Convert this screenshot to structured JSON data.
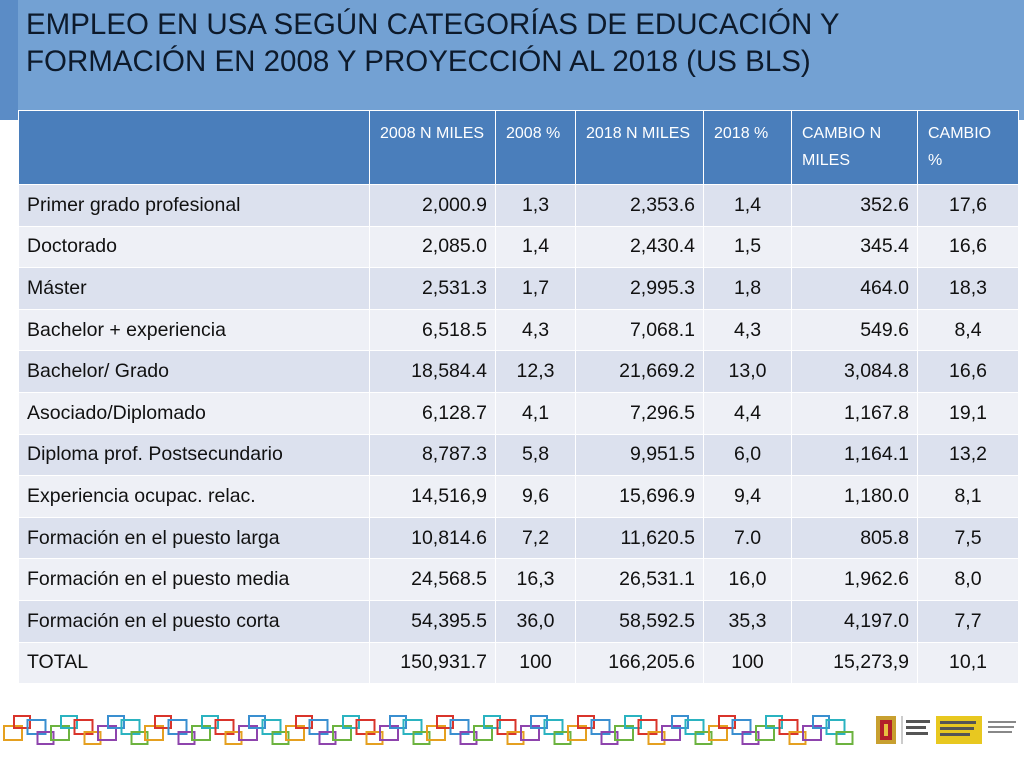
{
  "title": "EMPLEO EN USA SEGÚN CATEGORÍAS DE EDUCACIÓN Y FORMACIÓN EN 2008 Y PROYECCIÓN AL 2018 (US BLS)",
  "table": {
    "headers": [
      "",
      "2008 N MILES",
      "2008 %",
      "2018 N MILES",
      "2018 %",
      "CAMBIO N MILES",
      "CAMBIO %"
    ],
    "rows": [
      [
        "Primer grado profesional",
        "2,000.9",
        "1,3",
        "2,353.6",
        "1,4",
        "352.6",
        "17,6"
      ],
      [
        "Doctorado",
        "2,085.0",
        "1,4",
        "2,430.4",
        "1,5",
        "345.4",
        "16,6"
      ],
      [
        "Máster",
        "2,531.3",
        "1,7",
        "2,995.3",
        "1,8",
        "464.0",
        "18,3"
      ],
      [
        "Bachelor + experiencia",
        "6,518.5",
        "4,3",
        "7,068.1",
        "4,3",
        "549.6",
        "8,4"
      ],
      [
        "Bachelor/ Grado",
        "18,584.4",
        "12,3",
        "21,669.2",
        "13,0",
        "3,084.8",
        "16,6"
      ],
      [
        "Asociado/Diplomado",
        "6,128.7",
        "4,1",
        "7,296.5",
        "4,4",
        "1,167.8",
        "19,1"
      ],
      [
        "Diploma prof. Postsecundario",
        "8,787.3",
        "5,8",
        "9,951.5",
        "6,0",
        "1,164.1",
        "13,2"
      ],
      [
        "Experiencia ocupac. relac.",
        "14,516,9",
        "9,6",
        "15,696.9",
        "9,4",
        "1,180.0",
        "8,1"
      ],
      [
        "Formación en el puesto larga",
        "10,814.6",
        "7,2",
        "11,620.5",
        "7.0",
        "805.8",
        "7,5"
      ],
      [
        "Formación en el puesto  media",
        "24,568.5",
        "16,3",
        "26,531.1",
        "16,0",
        "1,962.6",
        "8,0"
      ],
      [
        "Formación en el puesto corta",
        "54,395.5",
        "36,0",
        "58,592.5",
        "35,3",
        "4,197.0",
        "7,7"
      ],
      [
        "TOTAL",
        "150,931.7",
        "100",
        "166,205.6",
        "100",
        "15,273,9",
        "10,1"
      ]
    ]
  },
  "footer": {
    "strip_icon": "chain-links-decoration",
    "logo_icon": "gobierno-de-espana-logo"
  },
  "colors": {
    "title_band": "#73a1d3",
    "header_fill": "#4a7ebb",
    "row_dark": "#dce1ee",
    "row_light": "#eef0f6"
  }
}
